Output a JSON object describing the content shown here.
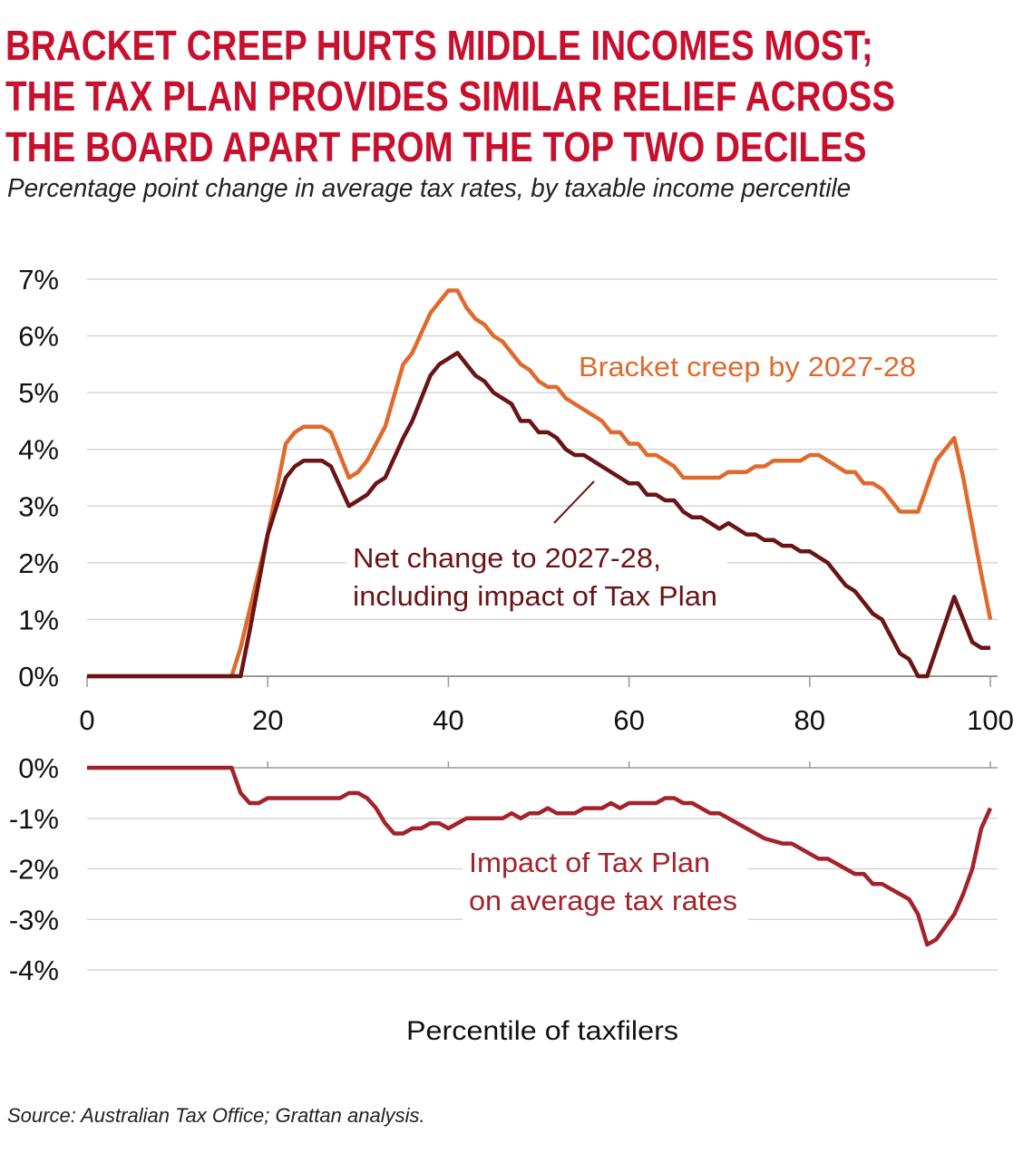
{
  "title_lines": [
    "BRACKET CREEP HURTS MIDDLE INCOMES MOST;",
    "THE TAX PLAN PROVIDES SIMILAR RELIEF ACROSS",
    "THE BOARD APART FROM THE TOP TWO DECILES"
  ],
  "subtitle": "Percentage point change in average tax rates, by taxable income percentile",
  "source": "Source: Australian Tax Office; Grattan analysis.",
  "colors": {
    "title": "#c8102e",
    "bracket_creep": "#e06a2c",
    "net_change": "#6b1416",
    "impact": "#a4232b",
    "grid": "#cfcfcf"
  },
  "chart_data": [
    {
      "type": "line",
      "xlabel": "",
      "ylabel": "",
      "xlim": [
        0,
        100
      ],
      "ylim": [
        0,
        7
      ],
      "x_ticks": [
        "0",
        "20",
        "40",
        "60",
        "80",
        "100"
      ],
      "y_ticks": [
        "0%",
        "1%",
        "2%",
        "3%",
        "4%",
        "5%",
        "6%",
        "7%"
      ],
      "grid": true,
      "series": [
        {
          "name": "Bracket creep by 2027-28",
          "color": "#e06a2c",
          "points": [
            [
              0,
              0
            ],
            [
              16,
              0
            ],
            [
              17,
              0.5
            ],
            [
              20,
              2.5
            ],
            [
              22,
              4.1
            ],
            [
              23,
              4.3
            ],
            [
              24,
              4.4
            ],
            [
              26,
              4.4
            ],
            [
              27,
              4.3
            ],
            [
              29,
              3.5
            ],
            [
              30,
              3.6
            ],
            [
              31,
              3.8
            ],
            [
              33,
              4.4
            ],
            [
              35,
              5.5
            ],
            [
              36,
              5.7
            ],
            [
              38,
              6.4
            ],
            [
              40,
              6.8
            ],
            [
              41,
              6.8
            ],
            [
              42,
              6.5
            ],
            [
              43,
              6.3
            ],
            [
              44,
              6.2
            ],
            [
              45,
              6.0
            ],
            [
              46,
              5.9
            ],
            [
              48,
              5.5
            ],
            [
              49,
              5.4
            ],
            [
              50,
              5.2
            ],
            [
              51,
              5.1
            ],
            [
              52,
              5.1
            ],
            [
              53,
              4.9
            ],
            [
              55,
              4.7
            ],
            [
              57,
              4.5
            ],
            [
              58,
              4.3
            ],
            [
              59,
              4.3
            ],
            [
              60,
              4.1
            ],
            [
              61,
              4.1
            ],
            [
              62,
              3.9
            ],
            [
              63,
              3.9
            ],
            [
              65,
              3.7
            ],
            [
              66,
              3.5
            ],
            [
              70,
              3.5
            ],
            [
              71,
              3.6
            ],
            [
              73,
              3.6
            ],
            [
              74,
              3.7
            ],
            [
              75,
              3.7
            ],
            [
              76,
              3.8
            ],
            [
              79,
              3.8
            ],
            [
              80,
              3.9
            ],
            [
              81,
              3.9
            ],
            [
              84,
              3.6
            ],
            [
              85,
              3.6
            ],
            [
              86,
              3.4
            ],
            [
              87,
              3.4
            ],
            [
              88,
              3.3
            ],
            [
              90,
              2.9
            ],
            [
              92,
              2.9
            ],
            [
              94,
              3.8
            ],
            [
              96,
              4.2
            ],
            [
              97,
              3.5
            ],
            [
              99,
              1.8
            ],
            [
              100,
              1.0
            ]
          ]
        },
        {
          "name": "Net change to 2027-28, including impact of Tax Plan",
          "color": "#6b1416",
          "points": [
            [
              0,
              0
            ],
            [
              17,
              0
            ],
            [
              18,
              0.8
            ],
            [
              20,
              2.5
            ],
            [
              22,
              3.5
            ],
            [
              23,
              3.7
            ],
            [
              24,
              3.8
            ],
            [
              26,
              3.8
            ],
            [
              27,
              3.7
            ],
            [
              29,
              3.0
            ],
            [
              31,
              3.2
            ],
            [
              32,
              3.4
            ],
            [
              33,
              3.5
            ],
            [
              35,
              4.2
            ],
            [
              36,
              4.5
            ],
            [
              38,
              5.3
            ],
            [
              39,
              5.5
            ],
            [
              41,
              5.7
            ],
            [
              42,
              5.5
            ],
            [
              43,
              5.3
            ],
            [
              44,
              5.2
            ],
            [
              45,
              5.0
            ],
            [
              47,
              4.8
            ],
            [
              48,
              4.5
            ],
            [
              49,
              4.5
            ],
            [
              50,
              4.3
            ],
            [
              51,
              4.3
            ],
            [
              52,
              4.2
            ],
            [
              53,
              4.0
            ],
            [
              54,
              3.9
            ],
            [
              55,
              3.9
            ],
            [
              57,
              3.7
            ],
            [
              59,
              3.5
            ],
            [
              60,
              3.4
            ],
            [
              61,
              3.4
            ],
            [
              62,
              3.2
            ],
            [
              63,
              3.2
            ],
            [
              64,
              3.1
            ],
            [
              65,
              3.1
            ],
            [
              66,
              2.9
            ],
            [
              67,
              2.8
            ],
            [
              68,
              2.8
            ],
            [
              70,
              2.6
            ],
            [
              71,
              2.7
            ],
            [
              73,
              2.5
            ],
            [
              74,
              2.5
            ],
            [
              75,
              2.4
            ],
            [
              76,
              2.4
            ],
            [
              77,
              2.3
            ],
            [
              78,
              2.3
            ],
            [
              79,
              2.2
            ],
            [
              80,
              2.2
            ],
            [
              81,
              2.1
            ],
            [
              82,
              2.0
            ],
            [
              84,
              1.6
            ],
            [
              85,
              1.5
            ],
            [
              87,
              1.1
            ],
            [
              88,
              1.0
            ],
            [
              90,
              0.4
            ],
            [
              91,
              0.3
            ],
            [
              92,
              -0.1
            ],
            [
              93,
              -0.1
            ],
            [
              96,
              1.4
            ],
            [
              98,
              0.6
            ],
            [
              99,
              0.5
            ],
            [
              100,
              0.5
            ]
          ]
        }
      ]
    },
    {
      "type": "line",
      "xlabel": "Percentile of taxfilers",
      "ylabel": "",
      "xlim": [
        0,
        100
      ],
      "ylim": [
        -4,
        0
      ],
      "y_ticks": [
        "0%",
        "-1%",
        "-2%",
        "-3%",
        "-4%"
      ],
      "grid": true,
      "series": [
        {
          "name": "Impact of Tax Plan on average tax rates",
          "color": "#a4232b",
          "points": [
            [
              0,
              0
            ],
            [
              16,
              0
            ],
            [
              17,
              -0.5
            ],
            [
              18,
              -0.7
            ],
            [
              19,
              -0.7
            ],
            [
              20,
              -0.6
            ],
            [
              28,
              -0.6
            ],
            [
              29,
              -0.5
            ],
            [
              30,
              -0.5
            ],
            [
              31,
              -0.6
            ],
            [
              32,
              -0.8
            ],
            [
              33,
              -1.1
            ],
            [
              34,
              -1.3
            ],
            [
              35,
              -1.3
            ],
            [
              36,
              -1.2
            ],
            [
              37,
              -1.2
            ],
            [
              38,
              -1.1
            ],
            [
              39,
              -1.1
            ],
            [
              40,
              -1.2
            ],
            [
              42,
              -1.0
            ],
            [
              46,
              -1.0
            ],
            [
              47,
              -0.9
            ],
            [
              48,
              -1.0
            ],
            [
              49,
              -0.9
            ],
            [
              50,
              -0.9
            ],
            [
              51,
              -0.8
            ],
            [
              52,
              -0.9
            ],
            [
              54,
              -0.9
            ],
            [
              55,
              -0.8
            ],
            [
              57,
              -0.8
            ],
            [
              58,
              -0.7
            ],
            [
              59,
              -0.8
            ],
            [
              60,
              -0.7
            ],
            [
              63,
              -0.7
            ],
            [
              64,
              -0.6
            ],
            [
              65,
              -0.6
            ],
            [
              66,
              -0.7
            ],
            [
              67,
              -0.7
            ],
            [
              69,
              -0.9
            ],
            [
              70,
              -0.9
            ],
            [
              73,
              -1.2
            ],
            [
              75,
              -1.4
            ],
            [
              77,
              -1.5
            ],
            [
              78,
              -1.5
            ],
            [
              81,
              -1.8
            ],
            [
              82,
              -1.8
            ],
            [
              85,
              -2.1
            ],
            [
              86,
              -2.1
            ],
            [
              87,
              -2.3
            ],
            [
              88,
              -2.3
            ],
            [
              91,
              -2.6
            ],
            [
              92,
              -2.9
            ],
            [
              93,
              -3.5
            ],
            [
              94,
              -3.4
            ],
            [
              96,
              -2.9
            ],
            [
              97,
              -2.5
            ],
            [
              98,
              -2.0
            ],
            [
              99,
              -1.2
            ],
            [
              100,
              -0.8
            ]
          ]
        }
      ]
    }
  ],
  "annotations": {
    "bracket": "Bracket creep by 2027-28",
    "net_line1": "Net change to 2027-28,",
    "net_line2": "including impact of Tax Plan",
    "impact_line1": "Impact of Tax Plan",
    "impact_line2": "on average tax rates"
  }
}
